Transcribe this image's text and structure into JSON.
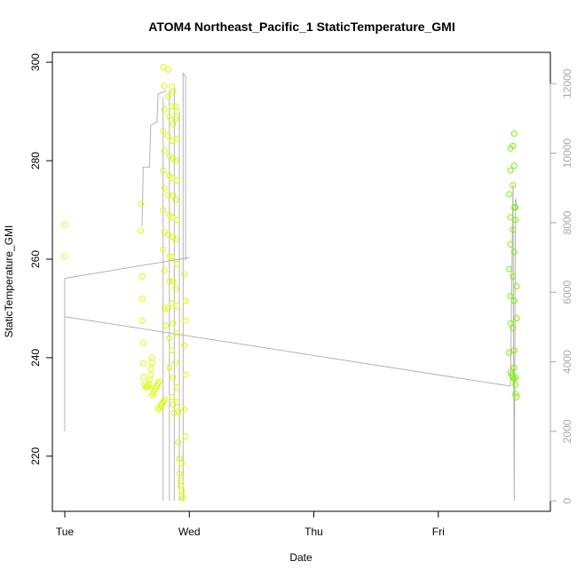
{
  "chart_data": {
    "type": "scatter",
    "title": "ATOM4 Northeast_Pacific_1 StaticTemperature_GMI",
    "xlabel": "Date",
    "ylabel": "StaticTemperature_GMI",
    "x_tick_labels": [
      "Tue",
      "Wed",
      "Thu",
      "Fri"
    ],
    "x_tick_values": [
      0,
      1,
      2,
      3
    ],
    "xlim": [
      -0.1,
      3.9
    ],
    "ylim": [
      208.8,
      302
    ],
    "y_ticks": [
      220,
      240,
      260,
      280,
      300
    ],
    "y2lim": [
      -300,
      12900
    ],
    "y2_ticks": [
      0,
      2000,
      4000,
      6000,
      8000,
      10000,
      12000
    ],
    "grid": false,
    "legend": "none",
    "point_color_yellow": "#d4ff00",
    "point_color_green": "#7cf000",
    "line_color": "#b3b3b3",
    "points": [
      [
        0.0,
        267.0
      ],
      [
        0.0,
        260.6
      ],
      [
        0.61,
        271.2
      ],
      [
        0.61,
        265.8
      ],
      [
        0.62,
        256.5
      ],
      [
        0.62,
        252.0
      ],
      [
        0.62,
        247.5
      ],
      [
        0.63,
        243.0
      ],
      [
        0.63,
        238.8
      ],
      [
        0.63,
        236.0
      ],
      [
        0.64,
        234.5
      ],
      [
        0.65,
        234.0
      ],
      [
        0.66,
        234.0
      ],
      [
        0.67,
        234.2
      ],
      [
        0.68,
        234.6
      ],
      [
        0.68,
        235.5
      ],
      [
        0.69,
        236.5
      ],
      [
        0.69,
        237.8
      ],
      [
        0.7,
        239.0
      ],
      [
        0.7,
        240.0
      ],
      [
        0.7,
        232.4
      ],
      [
        0.71,
        232.8
      ],
      [
        0.72,
        233.3
      ],
      [
        0.73,
        233.8
      ],
      [
        0.74,
        234.3
      ],
      [
        0.75,
        234.8
      ],
      [
        0.76,
        235.2
      ],
      [
        0.75,
        229.5
      ],
      [
        0.76,
        229.8
      ],
      [
        0.77,
        230.2
      ],
      [
        0.78,
        230.6
      ],
      [
        0.79,
        231.0
      ],
      [
        0.8,
        231.4
      ],
      [
        0.79,
        299.0
      ],
      [
        0.8,
        295.2
      ],
      [
        0.8,
        290.4
      ],
      [
        0.79,
        286.0
      ],
      [
        0.8,
        282.0
      ],
      [
        0.79,
        278.0
      ],
      [
        0.8,
        274.5
      ],
      [
        0.79,
        270.0
      ],
      [
        0.8,
        265.5
      ],
      [
        0.79,
        262.0
      ],
      [
        0.8,
        257.8
      ],
      [
        0.8,
        250.0
      ],
      [
        0.81,
        246.5
      ],
      [
        0.83,
        298.5
      ],
      [
        0.83,
        293.0
      ],
      [
        0.84,
        289.0
      ],
      [
        0.83,
        285.0
      ],
      [
        0.84,
        281.0
      ],
      [
        0.84,
        277.0
      ],
      [
        0.83,
        273.0
      ],
      [
        0.84,
        269.0
      ],
      [
        0.83,
        265.0
      ],
      [
        0.84,
        260.5
      ],
      [
        0.84,
        255.5
      ],
      [
        0.83,
        250.0
      ],
      [
        0.84,
        244.0
      ],
      [
        0.84,
        238.0
      ],
      [
        0.86,
        295.0
      ],
      [
        0.87,
        294.0
      ],
      [
        0.86,
        291.0
      ],
      [
        0.87,
        287.5
      ],
      [
        0.86,
        284.0
      ],
      [
        0.87,
        280.5
      ],
      [
        0.86,
        276.5
      ],
      [
        0.87,
        273.0
      ],
      [
        0.86,
        268.5
      ],
      [
        0.87,
        264.5
      ],
      [
        0.86,
        260.5
      ],
      [
        0.87,
        255.5
      ],
      [
        0.86,
        251.0
      ],
      [
        0.87,
        247.0
      ],
      [
        0.86,
        241.5
      ],
      [
        0.87,
        236.0
      ],
      [
        0.86,
        232.0
      ],
      [
        0.87,
        230.5
      ],
      [
        0.88,
        228.8
      ],
      [
        0.89,
        291.0
      ],
      [
        0.9,
        290.0
      ],
      [
        0.89,
        288.5
      ],
      [
        0.9,
        284.5
      ],
      [
        0.89,
        280.0
      ],
      [
        0.9,
        276.0
      ],
      [
        0.89,
        272.0
      ],
      [
        0.9,
        268.0
      ],
      [
        0.89,
        264.0
      ],
      [
        0.9,
        259.0
      ],
      [
        0.89,
        254.0
      ],
      [
        0.9,
        250.5
      ],
      [
        0.9,
        245.0
      ],
      [
        0.89,
        239.0
      ],
      [
        0.9,
        234.0
      ],
      [
        0.9,
        231.0
      ],
      [
        0.91,
        229.0
      ],
      [
        0.91,
        222.8
      ],
      [
        0.92,
        219.5
      ],
      [
        0.92,
        216.5
      ],
      [
        0.93,
        215.0
      ],
      [
        0.93,
        214.0
      ],
      [
        0.94,
        213.0
      ],
      [
        0.94,
        212.0
      ],
      [
        0.95,
        211.5
      ],
      [
        0.94,
        218.5
      ],
      [
        0.96,
        257.0
      ],
      [
        0.97,
        251.5
      ],
      [
        0.97,
        247.5
      ],
      [
        0.96,
        242.5
      ],
      [
        0.97,
        236.5
      ],
      [
        0.96,
        229.5
      ],
      [
        0.97,
        224.0
      ],
      [
        3.58,
        282.5
      ],
      [
        3.58,
        278.0
      ],
      [
        3.57,
        273.2
      ],
      [
        3.58,
        268.5
      ],
      [
        3.58,
        263.0
      ],
      [
        3.57,
        258.0
      ],
      [
        3.58,
        252.5
      ],
      [
        3.58,
        247.0
      ],
      [
        3.57,
        241.0
      ],
      [
        3.58,
        237.0
      ],
      [
        3.59,
        236.5
      ],
      [
        3.6,
        236.0
      ],
      [
        3.61,
        235.7
      ],
      [
        3.61,
        285.5
      ],
      [
        3.6,
        283.0
      ],
      [
        3.61,
        279.0
      ],
      [
        3.6,
        275.0
      ],
      [
        3.61,
        270.5
      ],
      [
        3.6,
        266.0
      ],
      [
        3.61,
        261.5
      ],
      [
        3.6,
        256.5
      ],
      [
        3.61,
        251.5
      ],
      [
        3.6,
        246.0
      ],
      [
        3.61,
        241.5
      ],
      [
        3.61,
        238.0
      ],
      [
        3.62,
        236.0
      ],
      [
        3.62,
        234.5
      ],
      [
        3.62,
        232.6
      ],
      [
        3.63,
        232.0
      ],
      [
        3.63,
        254.5
      ],
      [
        3.63,
        248.0
      ],
      [
        3.62,
        268.0
      ],
      [
        3.62,
        270.5
      ]
    ],
    "line_segments": [
      [
        [
          0.0,
          2000
        ],
        [
          0.0,
          6400
        ],
        [
          1.0,
          7000
        ]
      ],
      [
        [
          0.0,
          5300
        ],
        [
          3.58,
          3300
        ]
      ],
      [
        [
          0.62,
          7900
        ],
        [
          0.63,
          9600
        ],
        [
          0.68,
          9600
        ],
        [
          0.69,
          10800
        ],
        [
          0.74,
          10900
        ],
        [
          0.75,
          11700
        ],
        [
          0.82,
          11800
        ]
      ],
      [
        [
          0.79,
          0
        ],
        [
          0.79,
          11600
        ]
      ],
      [
        [
          0.84,
          0
        ],
        [
          0.84,
          11800
        ]
      ],
      [
        [
          0.88,
          0
        ],
        [
          0.88,
          11900
        ]
      ],
      [
        [
          0.92,
          0
        ],
        [
          0.92,
          11200
        ]
      ],
      [
        [
          0.95,
          0
        ],
        [
          0.95,
          12300
        ],
        [
          0.97,
          12200
        ],
        [
          0.97,
          6900
        ]
      ],
      [
        [
          3.58,
          3300
        ],
        [
          3.6,
          9100
        ],
        [
          3.61,
          0
        ],
        [
          3.62,
          8700
        ],
        [
          3.63,
          8500
        ]
      ]
    ]
  }
}
